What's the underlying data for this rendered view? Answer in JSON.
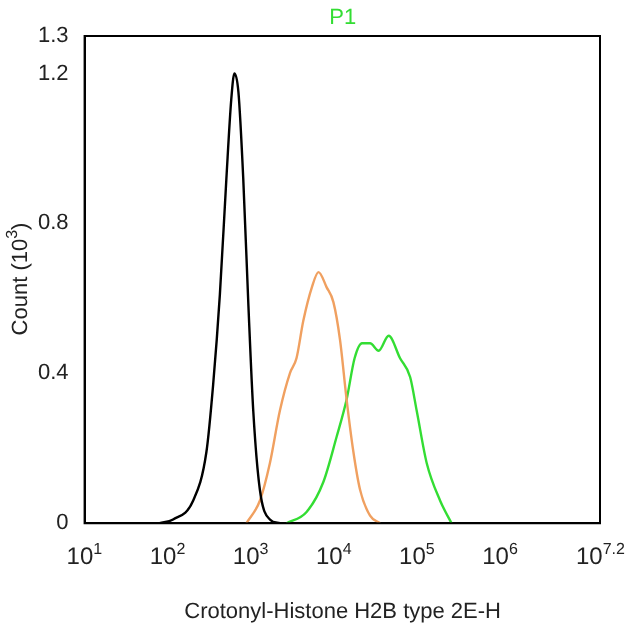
{
  "chart_data": {
    "type": "line",
    "title": "P1",
    "xlabel": "Crotonyl-Histone H2B type 2E-H",
    "ylabel": "Count (10$^{3}$)",
    "log": "x",
    "grid": false,
    "legend": false,
    "marker": "none",
    "xlim": [
      10,
      15848932
    ],
    "xticks": [
      {
        "value": 10,
        "label": "10$^{1}$"
      },
      {
        "value": 100,
        "label": "10$^{2}$"
      },
      {
        "value": 1000,
        "label": "10$^{3}$"
      },
      {
        "value": 10000,
        "label": "10$^{4}$"
      },
      {
        "value": 100000,
        "label": "10$^{5}$"
      },
      {
        "value": 1000000,
        "label": "10$^{6}$"
      },
      {
        "value": 15848932,
        "label": "10$^{7.2}$"
      }
    ],
    "ylim": [
      0,
      1.3
    ],
    "yticks": [
      0,
      0.4,
      0.8,
      1.2,
      1.3
    ],
    "series": [
      {
        "color": "#000000",
        "x": [
          80,
          116,
          202,
          292,
          352,
          424,
          508,
          581,
          634,
          709,
          810,
          935,
          1069,
          1283,
          1694,
          2234
        ],
        "values": [
          0,
          0.01,
          0.06,
          0.19,
          0.37,
          0.61,
          0.92,
          1.13,
          1.2,
          1.15,
          0.92,
          0.58,
          0.3,
          0.09,
          0.01,
          0
        ]
      },
      {
        "color": "#f0a060",
        "x": [
          885,
          1283,
          1694,
          2234,
          2949,
          3540,
          4276,
          5430,
          6520,
          8140,
          9840,
          11810,
          14190,
          17130,
          20560,
          27160,
          35810
        ],
        "values": [
          0,
          0.06,
          0.16,
          0.3,
          0.4,
          0.44,
          0.54,
          0.63,
          0.67,
          0.63,
          0.59,
          0.49,
          0.33,
          0.19,
          0.09,
          0.02,
          0
        ]
      },
      {
        "color": "#33dd33",
        "x": [
          2685,
          4680,
          7450,
          10740,
          14190,
          17700,
          21730,
          27160,
          34450,
          45500,
          62400,
          82400,
          98900,
          130600,
          189300,
          259500
        ],
        "values": [
          0,
          0.03,
          0.11,
          0.23,
          0.33,
          0.44,
          0.48,
          0.48,
          0.46,
          0.5,
          0.44,
          0.39,
          0.3,
          0.16,
          0.06,
          0
        ]
      }
    ]
  }
}
